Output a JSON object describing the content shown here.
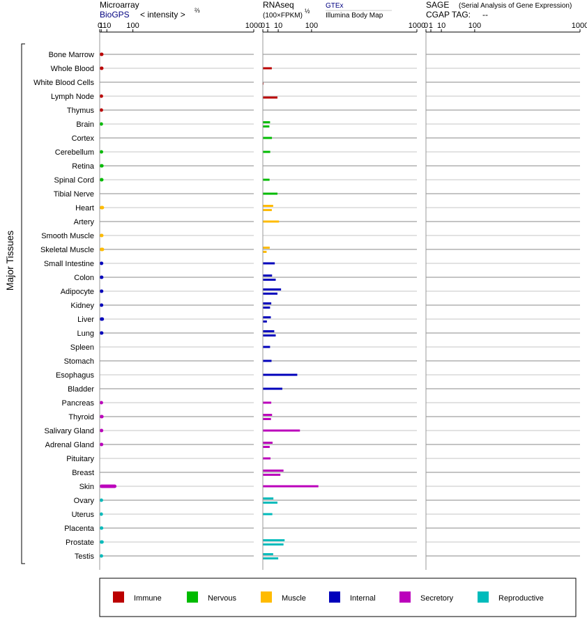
{
  "panels": {
    "microarray": {
      "title": "Microarray",
      "source": "BioGPS",
      "unit_prefix": "< intensity >",
      "unit_exp": "⅔"
    },
    "rnaseq": {
      "title": "RNAseq",
      "unit": "(100×FPKM)",
      "unit_exp": "½",
      "source1": "GTEx",
      "source2": "Illumina Body Map"
    },
    "sage": {
      "title": "SAGE",
      "subtitle": "(Serial Analysis of Gene Expression)",
      "tag_label": "CGAP TAG:",
      "tag_value": "--"
    }
  },
  "y_axis_label": "Major Tissues",
  "colors": {
    "Immune": "#bb0000",
    "Nervous": "#00bb00",
    "Muscle": "#ffbb00",
    "Internal": "#0000bb",
    "Secretory": "#bb00bb",
    "Reproductive": "#00bbbb"
  },
  "chart_data": {
    "type": "bar",
    "x_ticks": [
      "0",
      "1",
      "10",
      "100",
      "1000"
    ],
    "xlim": [
      0,
      1000
    ],
    "legend": [
      "Immune",
      "Nervous",
      "Muscle",
      "Internal",
      "Secretory",
      "Reproductive"
    ],
    "legend_position": "bottom",
    "tissues": [
      {
        "name": "Bone Marrow",
        "system": "Immune",
        "microarray": 3.9,
        "gtex": null,
        "ibm": null
      },
      {
        "name": "Whole Blood",
        "system": "Immune",
        "microarray": 3.9,
        "gtex": 3.4,
        "ibm": null
      },
      {
        "name": "White Blood Cells",
        "system": "Immune",
        "microarray": null,
        "gtex": null,
        "ibm": 0.02
      },
      {
        "name": "Lymph Node",
        "system": "Immune",
        "microarray": 3.3,
        "gtex": null,
        "ibm": 9.0
      },
      {
        "name": "Thymus",
        "system": "Immune",
        "microarray": 3.3,
        "gtex": null,
        "ibm": null
      },
      {
        "name": "Brain",
        "system": "Nervous",
        "microarray": 3.2,
        "gtex": 2.2,
        "ibm": 1.8
      },
      {
        "name": "Cortex",
        "system": "Nervous",
        "microarray": null,
        "gtex": 3.5,
        "ibm": null
      },
      {
        "name": "Cerebellum",
        "system": "Nervous",
        "microarray": 3.4,
        "gtex": 2.3,
        "ibm": null
      },
      {
        "name": "Retina",
        "system": "Nervous",
        "microarray": 4.1,
        "gtex": null,
        "ibm": null
      },
      {
        "name": "Spinal Cord",
        "system": "Nervous",
        "microarray": 3.9,
        "gtex": 1.9,
        "ibm": null
      },
      {
        "name": "Tibial Nerve",
        "system": "Nervous",
        "microarray": null,
        "gtex": 9.0,
        "ibm": null
      },
      {
        "name": "Heart",
        "system": "Muscle",
        "microarray": 4.9,
        "gtex": 4.5,
        "ibm": 3.4
      },
      {
        "name": "Artery",
        "system": "Muscle",
        "microarray": null,
        "gtex": 11.0,
        "ibm": null
      },
      {
        "name": "Smooth Muscle",
        "system": "Muscle",
        "microarray": 3.9,
        "gtex": null,
        "ibm": null
      },
      {
        "name": "Skeletal Muscle",
        "system": "Muscle",
        "microarray": 5.0,
        "gtex": 2.0,
        "ibm": 0.6
      },
      {
        "name": "Small Intestine",
        "system": "Internal",
        "microarray": 3.6,
        "gtex": 6.0,
        "ibm": null
      },
      {
        "name": "Colon",
        "system": "Internal",
        "microarray": 3.8,
        "gtex": 3.6,
        "ibm": 7.0
      },
      {
        "name": "Adipocyte",
        "system": "Internal",
        "microarray": 3.7,
        "gtex": 14.0,
        "ibm": 9.0
      },
      {
        "name": "Kidney",
        "system": "Internal",
        "microarray": 3.6,
        "gtex": 3.0,
        "ibm": 2.2
      },
      {
        "name": "Liver",
        "system": "Internal",
        "microarray": 4.7,
        "gtex": 2.7,
        "ibm": 0.7
      },
      {
        "name": "Lung",
        "system": "Internal",
        "microarray": 3.8,
        "gtex": 5.5,
        "ibm": 7.0
      },
      {
        "name": "Spleen",
        "system": "Internal",
        "microarray": null,
        "gtex": 2.2,
        "ibm": null
      },
      {
        "name": "Stomach",
        "system": "Internal",
        "microarray": null,
        "gtex": 3.2,
        "ibm": null
      },
      {
        "name": "Esophagus",
        "system": "Internal",
        "microarray": null,
        "gtex": 50.0,
        "ibm": null
      },
      {
        "name": "Bladder",
        "system": "Internal",
        "microarray": null,
        "gtex": 16.0,
        "ibm": null
      },
      {
        "name": "Pancreas",
        "system": "Secretory",
        "microarray": 3.3,
        "gtex": 3.0,
        "ibm": null
      },
      {
        "name": "Thyroid",
        "system": "Secretory",
        "microarray": 4.1,
        "gtex": 3.6,
        "ibm": 2.8
      },
      {
        "name": "Salivary Gland",
        "system": "Secretory",
        "microarray": 3.6,
        "gtex": 58.0,
        "ibm": null
      },
      {
        "name": "Adrenal Gland",
        "system": "Secretory",
        "microarray": 3.6,
        "gtex": 4.0,
        "ibm": 2.0
      },
      {
        "name": "Pituitary",
        "system": "Secretory",
        "microarray": null,
        "gtex": 2.5,
        "ibm": null
      },
      {
        "name": "Breast",
        "system": "Secretory",
        "microarray": null,
        "gtex": 18.0,
        "ibm": 13.0
      },
      {
        "name": "Skin",
        "system": "Secretory",
        "microarray": 36.0,
        "gtex": 130.0,
        "ibm": null
      },
      {
        "name": "Ovary",
        "system": "Reproductive",
        "microarray": 3.3,
        "gtex": 4.7,
        "ibm": 9.0
      },
      {
        "name": "Uterus",
        "system": "Reproductive",
        "microarray": 3.1,
        "gtex": 3.8,
        "ibm": null
      },
      {
        "name": "Placenta",
        "system": "Reproductive",
        "microarray": 3.6,
        "gtex": null,
        "ibm": null
      },
      {
        "name": "Prostate",
        "system": "Reproductive",
        "microarray": 4.3,
        "gtex": 20.0,
        "ibm": 18.0
      },
      {
        "name": "Testis",
        "system": "Reproductive",
        "microarray": 3.3,
        "gtex": 4.5,
        "ibm": 10.0
      }
    ]
  }
}
